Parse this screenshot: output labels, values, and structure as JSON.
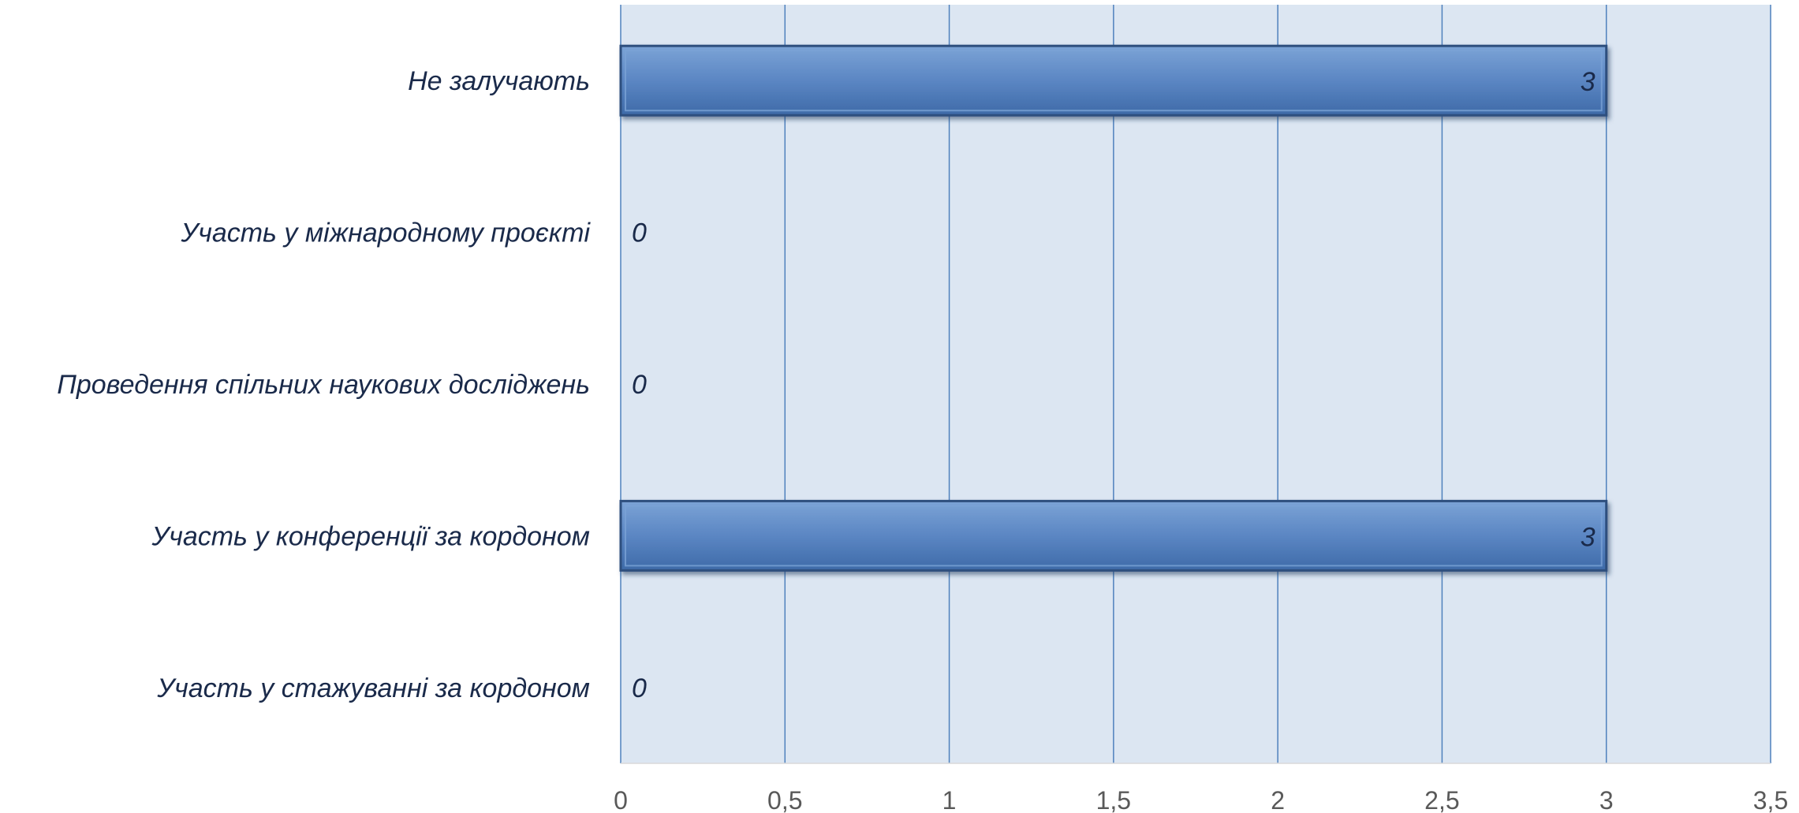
{
  "chart_data": {
    "type": "bar",
    "orientation": "horizontal",
    "categories": [
      "Не залучають",
      "Участь у міжнародному проєкті",
      "Проведення спільних наукових досліджень",
      "Участь у конференції за кордоном",
      "Участь у стажуванні за кордоном"
    ],
    "values": [
      3,
      0,
      0,
      3,
      0
    ],
    "data_labels": [
      "3",
      "0",
      "0",
      "3",
      "0"
    ],
    "xlim": [
      0,
      3.5
    ],
    "x_ticks": [
      "0",
      "0,5",
      "1",
      "1,5",
      "2",
      "2,5",
      "3",
      "3,5"
    ],
    "grid": true,
    "legend": "none",
    "colors": {
      "plot_background": "#dce6f2",
      "gridline": "#4f81bd",
      "bar_fill_top": "#7ba3d6",
      "bar_fill_mid": "#5b86c3",
      "bar_fill_bottom": "#3e6aa8",
      "bar_border": "#2e4f7e"
    }
  }
}
